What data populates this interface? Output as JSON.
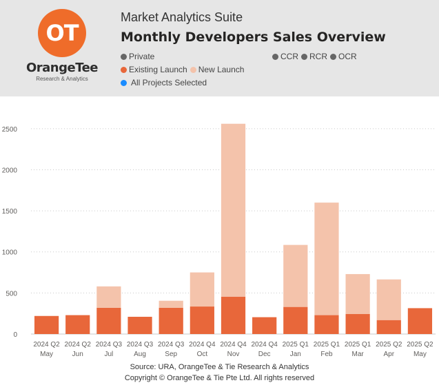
{
  "header": {
    "app_title": "Market Analytics Suite",
    "chart_title": "Monthly Developers Sales Overview",
    "logo": {
      "name": "OrangeTee",
      "subtitle": "Research & Analytics",
      "mark": "OT"
    }
  },
  "legends": {
    "segment": [
      {
        "label": "Private",
        "color": "#666666"
      }
    ],
    "region": [
      {
        "label": "CCR",
        "color": "#666666"
      },
      {
        "label": "RCR",
        "color": "#666666"
      },
      {
        "label": "OCR",
        "color": "#666666"
      }
    ],
    "launch": [
      {
        "label": "Existing Launch",
        "color": "#e8673a"
      },
      {
        "label": "New Launch",
        "color": "#f4c3ab"
      }
    ],
    "projects": {
      "label": "All Projects Selected",
      "color": "#1a8cff"
    }
  },
  "footer": {
    "source": "Source: URA, OrangeTee & Tie Research & Analytics",
    "copyright": "Copyright © OrangeTee & Tie Pte Ltd. All rights reserved"
  },
  "chart_data": {
    "type": "bar",
    "stacked": true,
    "categories": [
      [
        "2024 Q2",
        "May"
      ],
      [
        "2024 Q2",
        "Jun"
      ],
      [
        "2024 Q3",
        "Jul"
      ],
      [
        "2024 Q3",
        "Aug"
      ],
      [
        "2024 Q3",
        "Sep"
      ],
      [
        "2024 Q4",
        "Oct"
      ],
      [
        "2024 Q4",
        "Nov"
      ],
      [
        "2024 Q4",
        "Dec"
      ],
      [
        "2025 Q1",
        "Jan"
      ],
      [
        "2025 Q1",
        "Feb"
      ],
      [
        "2025 Q1",
        "Mar"
      ],
      [
        "2025 Q2",
        "Apr"
      ],
      [
        "2025 Q2",
        "May"
      ]
    ],
    "series": [
      {
        "name": "Existing Launch",
        "color": "#e8673a",
        "values": [
          220,
          230,
          320,
          210,
          320,
          335,
          455,
          205,
          330,
          230,
          245,
          170,
          315
        ]
      },
      {
        "name": "New Launch",
        "color": "#f4c3ab",
        "values": [
          0,
          0,
          260,
          0,
          85,
          415,
          2105,
          0,
          755,
          1370,
          485,
          495,
          0
        ]
      }
    ],
    "ylim": [
      0,
      2700
    ],
    "yticks": [
      0,
      500,
      1000,
      1500,
      2000,
      2500
    ],
    "grid": true,
    "legend": "top"
  }
}
